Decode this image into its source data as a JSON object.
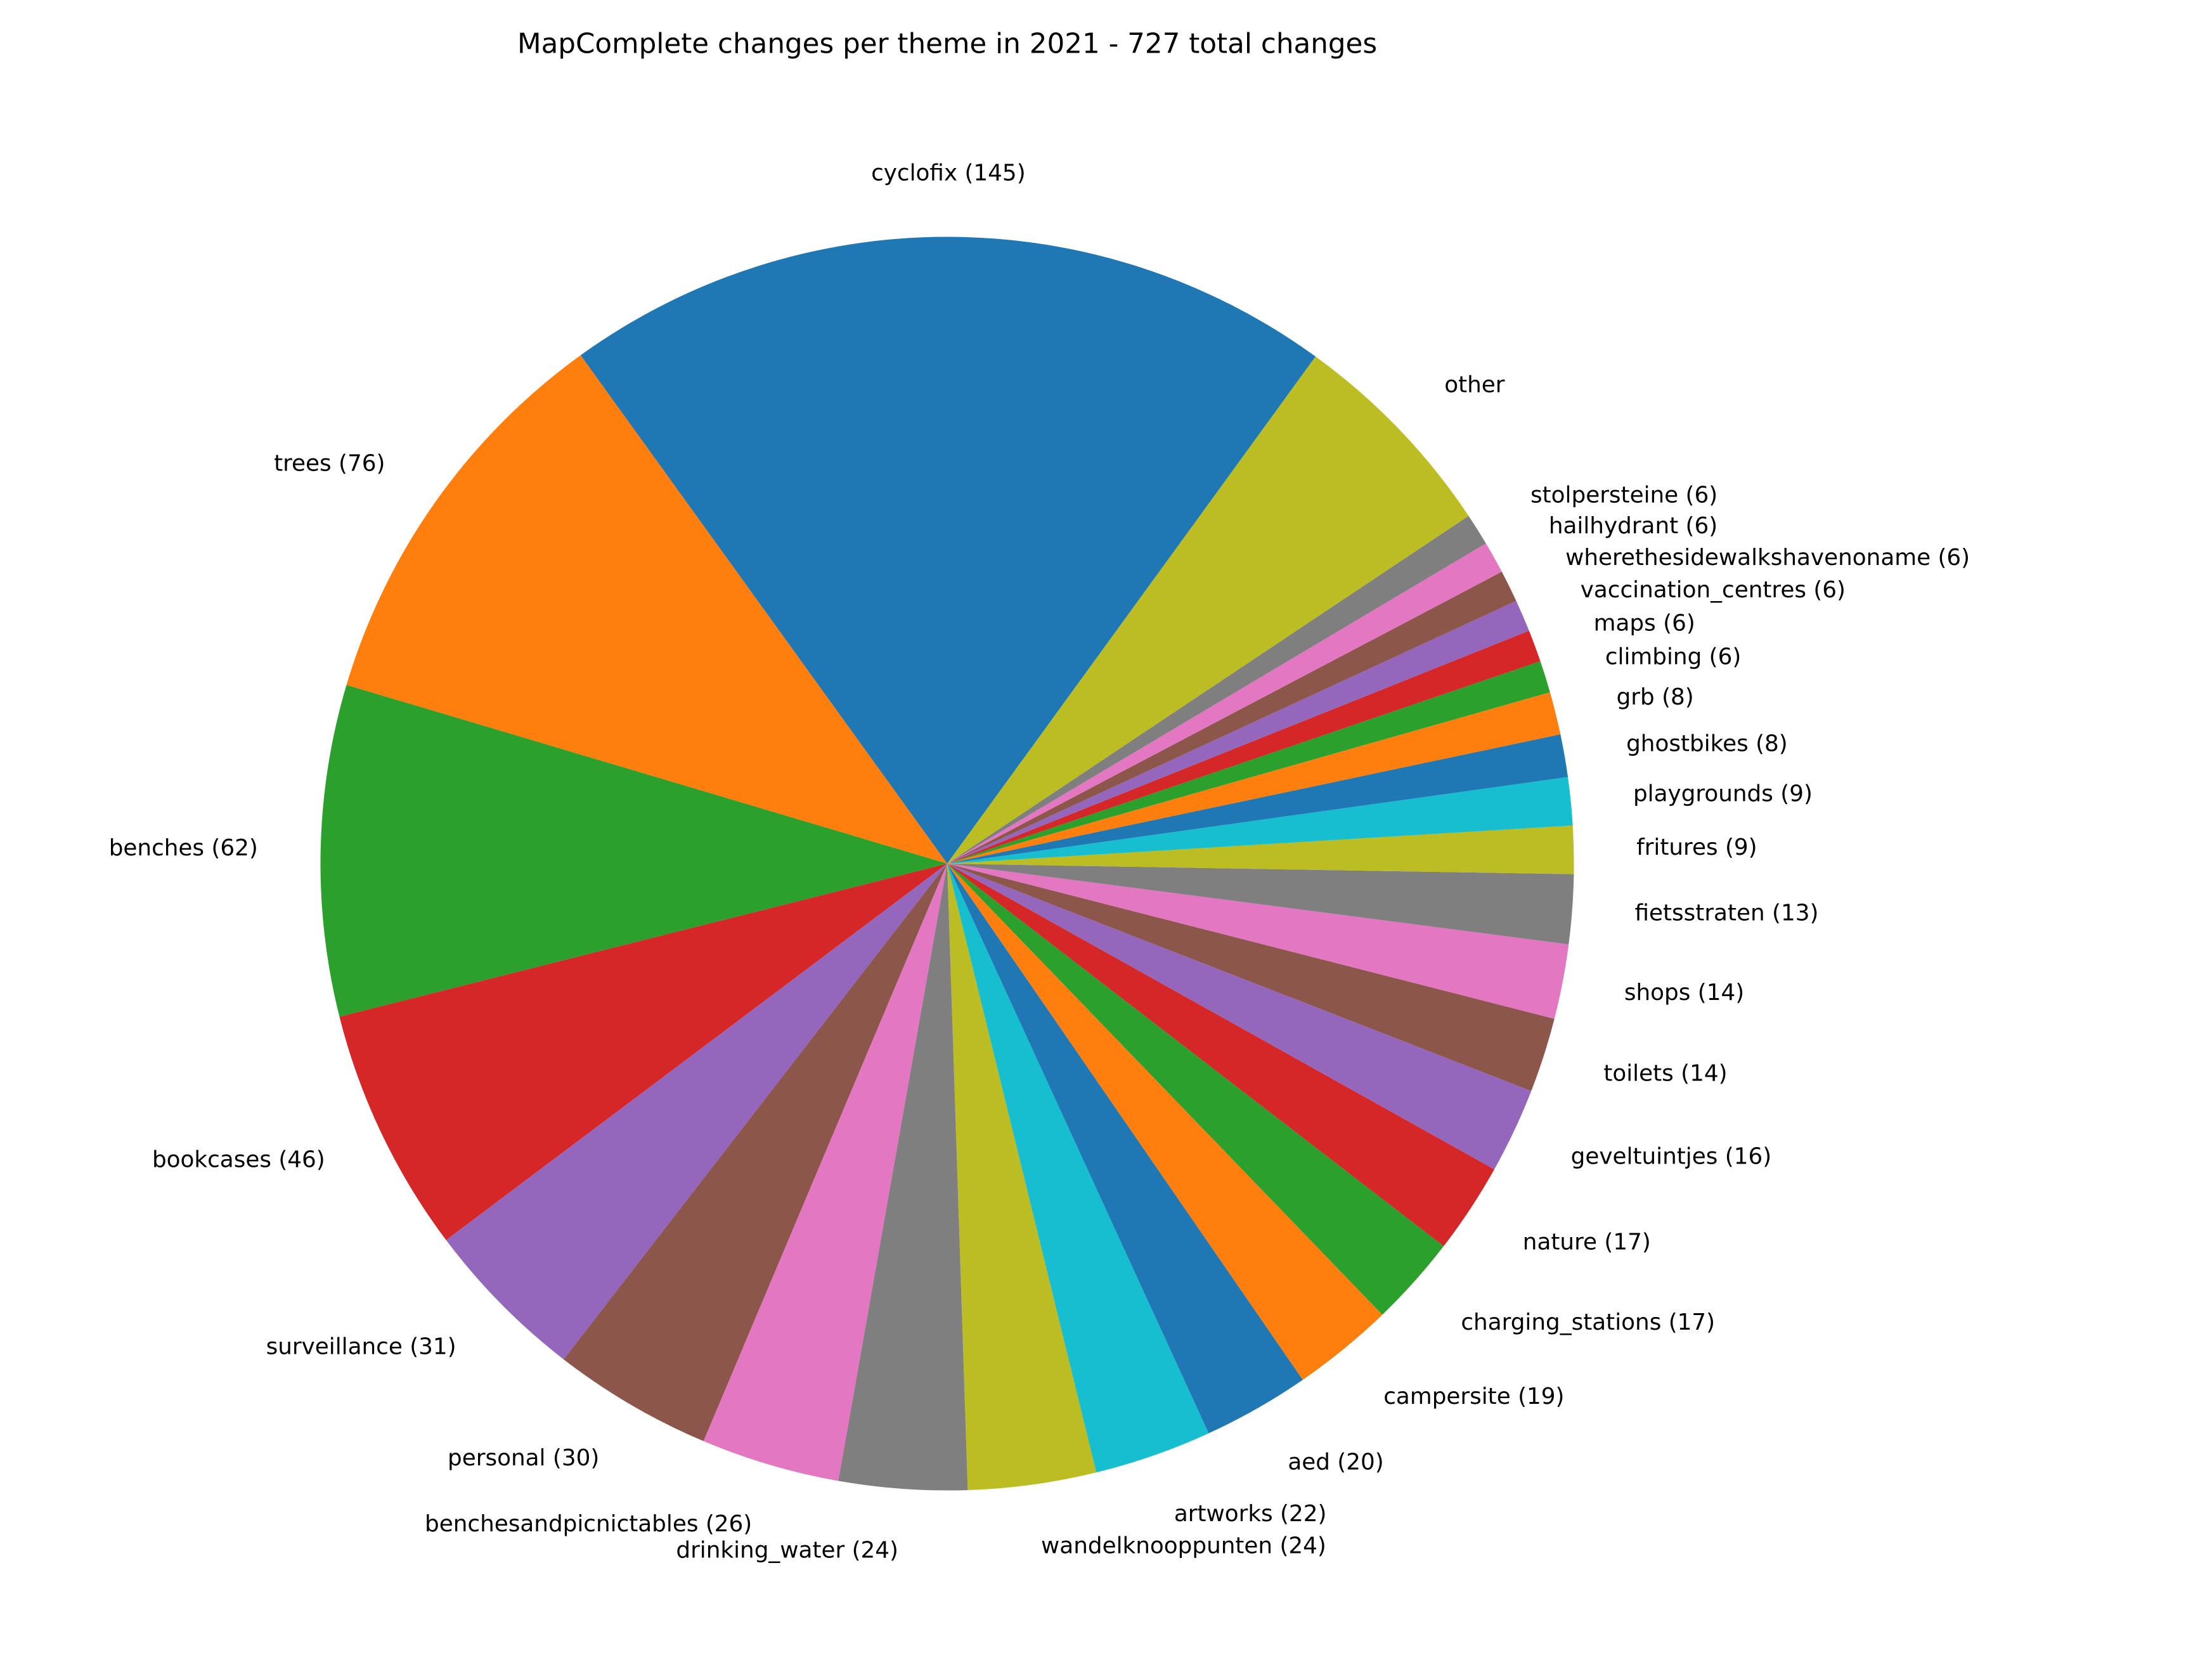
{
  "chart_data": {
    "type": "pie",
    "title": "MapComplete changes per theme in 2021 - 727 total changes",
    "categories": [
      "cyclofix (145)",
      "trees (76)",
      "benches (62)",
      "bookcases (46)",
      "surveillance (31)",
      "personal (30)",
      "benchesandpicnictables (26)",
      "drinking_water (24)",
      "wandelknooppunten (24)",
      "artworks (22)",
      "aed (20)",
      "campersite (19)",
      "charging_stations (17)",
      "nature (17)",
      "geveltuintjes (16)",
      "toilets (14)",
      "shops (14)",
      "fietsstraten (13)",
      "fritures (9)",
      "playgrounds (9)",
      "ghostbikes (8)",
      "grb (8)",
      "climbing (6)",
      "maps (6)",
      "vaccination_centres (6)",
      "wherethesidewalkshavenoname (6)",
      "hailhydrant (6)",
      "stolpersteine (6)",
      "other"
    ],
    "values": [
      145,
      76,
      62,
      46,
      31,
      30,
      26,
      24,
      24,
      22,
      20,
      19,
      17,
      17,
      16,
      14,
      14,
      13,
      9,
      9,
      8,
      8,
      6,
      6,
      6,
      6,
      6,
      6,
      41
    ],
    "colors": [
      "#1f77b4",
      "#ff7f0e",
      "#2ca02c",
      "#d62728",
      "#9467bd",
      "#8c564b",
      "#e377c2",
      "#7f7f7f",
      "#bcbd22",
      "#17becf",
      "#1f77b4",
      "#ff7f0e",
      "#2ca02c",
      "#d62728",
      "#9467bd",
      "#8c564b",
      "#e377c2",
      "#7f7f7f",
      "#bcbd22",
      "#17becf",
      "#1f77b4",
      "#ff7f0e",
      "#2ca02c",
      "#d62728",
      "#9467bd",
      "#8c564b",
      "#e377c2",
      "#7f7f7f",
      "#bcbd22"
    ],
    "start_angle": 54
  }
}
